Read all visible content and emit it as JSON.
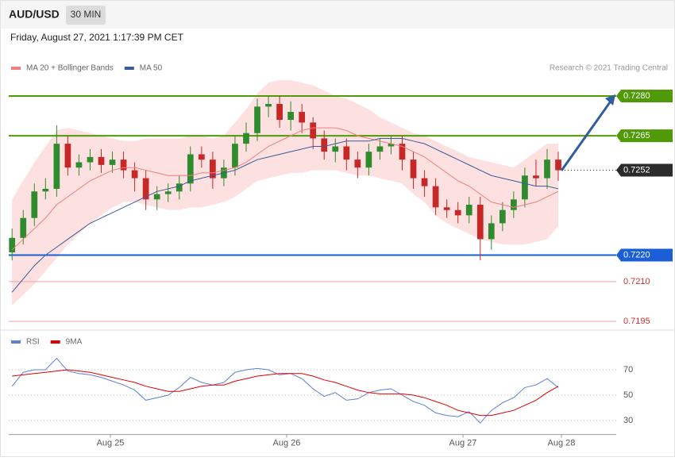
{
  "header": {
    "symbol": "AUD/USD",
    "timeframe": "30 MIN",
    "timestamp": "Friday, August 27, 2021 1:17:39 PM CET"
  },
  "credit": "Research © 2021 Trading Central",
  "chart_data": [
    {
      "type": "candlestick",
      "xlim": [
        -0.3,
        54.2
      ],
      "ylim": [
        0.7191,
        0.7287
      ],
      "up_color": "#2e8b2e",
      "down_color": "#c62828",
      "open": [
        0.7221,
        0.72265,
        0.7234,
        0.7244,
        0.7245,
        0.7262,
        0.7253,
        0.7255,
        0.7257,
        0.7254,
        0.7256,
        0.7252,
        0.7249,
        0.7241,
        0.7243,
        0.7244,
        0.7247,
        0.7258,
        0.7256,
        0.7249,
        0.7253,
        0.7262,
        0.7266,
        0.7276,
        0.7277,
        0.7271,
        0.7274,
        0.727,
        0.7264,
        0.7259,
        0.7261,
        0.7256,
        0.7253,
        0.7259,
        0.7261,
        0.7262,
        0.7256,
        0.7249,
        0.7246,
        0.7238,
        0.7237,
        0.7235,
        0.7239,
        0.7226,
        0.7232,
        0.7237,
        0.7241,
        0.725,
        0.7249,
        0.7256
      ],
      "high": [
        0.723,
        0.7237,
        0.7247,
        0.7249,
        0.7269,
        0.7265,
        0.7258,
        0.726,
        0.726,
        0.7259,
        0.7259,
        0.7255,
        0.7252,
        0.7246,
        0.7247,
        0.725,
        0.7261,
        0.7261,
        0.7259,
        0.7256,
        0.7265,
        0.727,
        0.7279,
        0.728,
        0.728,
        0.7278,
        0.7277,
        0.7272,
        0.7267,
        0.7264,
        0.7264,
        0.7259,
        0.7262,
        0.7264,
        0.7265,
        0.7265,
        0.7259,
        0.7252,
        0.7249,
        0.7241,
        0.724,
        0.7242,
        0.7242,
        0.7235,
        0.724,
        0.7244,
        0.7253,
        0.7256,
        0.726,
        0.7259
      ],
      "low": [
        0.7218,
        0.7224,
        0.7231,
        0.7241,
        0.7242,
        0.725,
        0.725,
        0.7252,
        0.7251,
        0.7251,
        0.7249,
        0.7244,
        0.7237,
        0.7237,
        0.724,
        0.7241,
        0.7244,
        0.7253,
        0.7245,
        0.7246,
        0.725,
        0.7259,
        0.7263,
        0.7272,
        0.7268,
        0.7267,
        0.7266,
        0.726,
        0.7256,
        0.7255,
        0.7252,
        0.7249,
        0.725,
        0.7256,
        0.7258,
        0.7252,
        0.7245,
        0.7242,
        0.7235,
        0.7234,
        0.7232,
        0.7232,
        0.7218,
        0.7222,
        0.7229,
        0.7234,
        0.7238,
        0.7246,
        0.7245,
        0.7248
      ],
      "close": [
        0.72265,
        0.7234,
        0.7244,
        0.7245,
        0.7262,
        0.7253,
        0.7255,
        0.7257,
        0.7254,
        0.7256,
        0.7252,
        0.7249,
        0.7241,
        0.7243,
        0.7244,
        0.7247,
        0.7258,
        0.7256,
        0.7249,
        0.7253,
        0.7262,
        0.7266,
        0.7276,
        0.7277,
        0.7271,
        0.7274,
        0.727,
        0.7264,
        0.7259,
        0.7261,
        0.7256,
        0.7253,
        0.7259,
        0.7261,
        0.7262,
        0.7256,
        0.7249,
        0.7246,
        0.7238,
        0.7237,
        0.7235,
        0.7239,
        0.7226,
        0.7232,
        0.7237,
        0.7241,
        0.725,
        0.7249,
        0.7256,
        0.7252
      ],
      "series": [
        {
          "name": "MA 20 + Bollinger Bands",
          "color": "#f07f7f",
          "band_color": "#fde0e0",
          "values": [
            0.7222,
            0.7226,
            0.723,
            0.7234,
            0.7239,
            0.7242,
            0.7245,
            0.7248,
            0.725,
            0.7252,
            0.7253,
            0.7253,
            0.7252,
            0.7251,
            0.725,
            0.725,
            0.725,
            0.7251,
            0.7251,
            0.7252,
            0.7253,
            0.7255,
            0.7258,
            0.7261,
            0.7263,
            0.7265,
            0.7267,
            0.7268,
            0.7268,
            0.7268,
            0.7267,
            0.7265,
            0.7264,
            0.7263,
            0.7262,
            0.7261,
            0.7259,
            0.7257,
            0.7254,
            0.7251,
            0.7248,
            0.7246,
            0.7243,
            0.724,
            0.7239,
            0.7238,
            0.7239,
            0.724,
            0.7242,
            0.7244
          ],
          "upper": [
            0.7241,
            0.7248,
            0.7255,
            0.7261,
            0.7267,
            0.7268,
            0.7267,
            0.7266,
            0.7265,
            0.7264,
            0.7263,
            0.7263,
            0.7264,
            0.7264,
            0.7264,
            0.7264,
            0.7265,
            0.7265,
            0.7264,
            0.7265,
            0.727,
            0.7275,
            0.7281,
            0.7285,
            0.7286,
            0.7286,
            0.7285,
            0.7284,
            0.7282,
            0.728,
            0.7279,
            0.7277,
            0.7275,
            0.7272,
            0.727,
            0.7268,
            0.7266,
            0.7265,
            0.7263,
            0.7261,
            0.7259,
            0.7257,
            0.7256,
            0.7255,
            0.7254,
            0.7253,
            0.7256,
            0.7259,
            0.7262,
            0.7262
          ],
          "lower": [
            0.7201,
            0.7205,
            0.7209,
            0.7214,
            0.7219,
            0.7224,
            0.7228,
            0.7232,
            0.7235,
            0.7238,
            0.724,
            0.724,
            0.7239,
            0.7238,
            0.7237,
            0.7237,
            0.7238,
            0.7238,
            0.7239,
            0.724,
            0.7242,
            0.7245,
            0.7248,
            0.7249,
            0.725,
            0.7251,
            0.7251,
            0.7252,
            0.7252,
            0.7252,
            0.7251,
            0.725,
            0.725,
            0.7249,
            0.7248,
            0.7247,
            0.7243,
            0.724,
            0.7235,
            0.7232,
            0.723,
            0.7228,
            0.7226,
            0.7225,
            0.7224,
            0.7224,
            0.7224,
            0.7225,
            0.7226,
            0.7231
          ]
        },
        {
          "name": "MA 50",
          "color": "#3a5a9a",
          "values": [
            0.7206,
            0.7211,
            0.7216,
            0.722,
            0.7223,
            0.7226,
            0.7229,
            0.7232,
            0.7234,
            0.7236,
            0.7238,
            0.724,
            0.7242,
            0.7244,
            0.7245,
            0.7246,
            0.7248,
            0.7249,
            0.725,
            0.7251,
            0.7252,
            0.7254,
            0.7256,
            0.7257,
            0.7258,
            0.7259,
            0.726,
            0.7261,
            0.7261,
            0.7262,
            0.7263,
            0.7263,
            0.7263,
            0.7264,
            0.7264,
            0.7264,
            0.7263,
            0.7262,
            0.726,
            0.7258,
            0.7256,
            0.7254,
            0.7252,
            0.725,
            0.7249,
            0.7248,
            0.7247,
            0.7246,
            0.7246,
            0.7245
          ]
        }
      ],
      "levels": [
        {
          "value": 0.728,
          "label": "0.7280",
          "color": "#4f9a06",
          "box": true
        },
        {
          "value": 0.7265,
          "color": "#4f9a06",
          "box": true
        },
        {
          "value": 0.7252,
          "color": "#2b2b2b",
          "box": true,
          "dotted": true
        },
        {
          "value": 0.722,
          "label": "0.7220",
          "color": "#1a5fd6",
          "box": true
        },
        {
          "value": 0.721,
          "label": "0.7210",
          "color": "#f4a0a0",
          "text_color": "#d32f2f",
          "box": false
        },
        {
          "value": 0.7195,
          "color": "#f4a0a0",
          "text_color": "#d32f2f",
          "box": false
        }
      ]
    },
    {
      "type": "line",
      "xlim": [
        -0.3,
        54.2
      ],
      "ylim": [
        19,
        86
      ],
      "yticks": [
        30,
        50,
        70
      ],
      "xticks": [
        {
          "value": 8.82,
          "label": "Aug 25"
        },
        {
          "value": 24.63,
          "label": "Aug 26"
        },
        {
          "value": 40.45,
          "label": "Aug 27"
        },
        {
          "value": 49.28,
          "label": "Aug 28"
        }
      ],
      "series": [
        {
          "name": "RSI",
          "color": "#5b7fd6",
          "values": [
            57,
            68,
            70,
            70,
            79,
            69,
            67,
            66,
            64,
            61,
            58,
            54,
            46,
            48,
            50,
            56,
            64,
            60,
            58,
            60,
            68,
            70,
            71,
            70,
            66,
            67,
            63,
            55,
            49,
            52,
            46,
            47,
            52,
            54,
            55,
            50,
            45,
            42,
            36,
            34,
            33,
            37,
            28,
            38,
            44,
            48,
            56,
            58,
            63,
            56
          ]
        },
        {
          "name": "9MA",
          "color": "#e00000",
          "values": [
            65,
            66,
            67,
            68,
            69,
            70,
            69,
            68,
            66,
            64,
            62,
            60,
            57,
            55,
            53,
            53,
            55,
            57,
            58,
            58,
            61,
            63,
            65,
            66,
            67,
            67,
            67,
            65,
            62,
            60,
            57,
            54,
            52,
            51,
            51,
            51,
            50,
            48,
            45,
            42,
            38,
            36,
            34,
            34,
            36,
            38,
            42,
            46,
            52,
            57
          ]
        }
      ]
    }
  ]
}
